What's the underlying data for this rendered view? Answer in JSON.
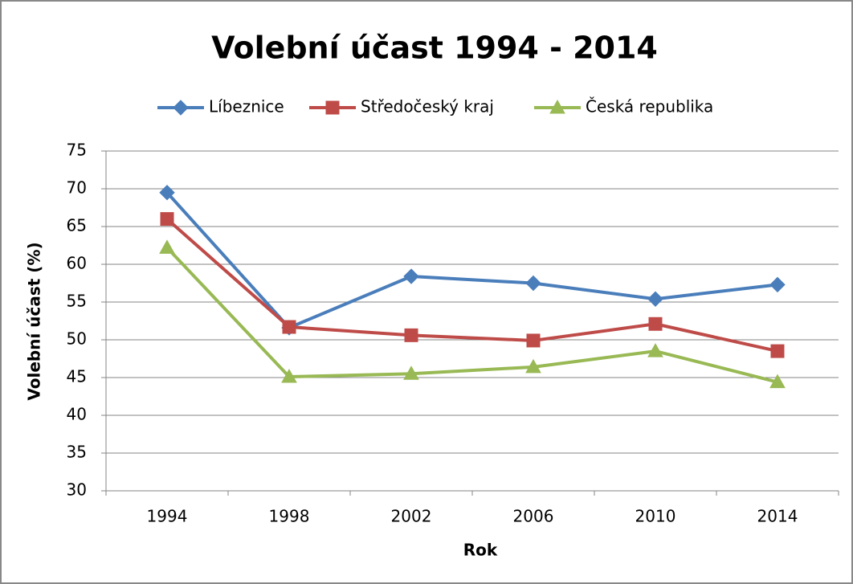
{
  "chart_data": {
    "type": "line",
    "title": "Volební účast 1994 - 2014",
    "x_label": "Rok",
    "y_label": "Volební účast (%)",
    "categories": [
      "1994",
      "1998",
      "2002",
      "2006",
      "2010",
      "2014"
    ],
    "series": [
      {
        "name": "Líbeznice",
        "color": "#4a7ebb",
        "marker": "diamond",
        "values": [
          69.5,
          51.6,
          58.4,
          57.5,
          55.4,
          57.3
        ]
      },
      {
        "name": "Středočeský kraj",
        "color": "#be4b48",
        "marker": "square",
        "values": [
          66.0,
          51.7,
          50.6,
          49.9,
          52.1,
          48.5
        ]
      },
      {
        "name": "Česká republika",
        "color": "#98b954",
        "marker": "triangle",
        "values": [
          62.2,
          45.1,
          45.5,
          46.4,
          48.5,
          44.4
        ]
      }
    ],
    "ylim": [
      30,
      75
    ],
    "yticks": [
      30,
      35,
      40,
      45,
      50,
      55,
      60,
      65,
      70,
      75
    ],
    "grid": true,
    "legend": "top"
  }
}
